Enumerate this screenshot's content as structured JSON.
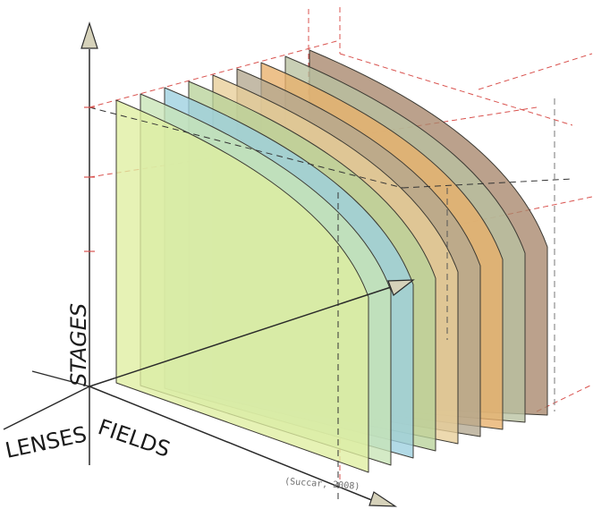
{
  "labels": {
    "stages": "STAGES",
    "lenses": "LENSES",
    "fields": "FIELDS"
  },
  "credit": "(Succar, 2008)",
  "colors": {
    "background": "#ffffff",
    "axis": "#2a2a2a",
    "guide_dash": "#d9534f",
    "arrow_fill": "#d6d2ba"
  },
  "layers": [
    {
      "name": "layer-1",
      "color": "#dfeea0"
    },
    {
      "name": "layer-2",
      "color": "#c8e4b6"
    },
    {
      "name": "layer-3",
      "color": "#9cd0df"
    },
    {
      "name": "layer-4",
      "color": "#b8d29a"
    },
    {
      "name": "layer-5",
      "color": "#e8ce98"
    },
    {
      "name": "layer-6",
      "color": "#b4a890"
    },
    {
      "name": "layer-7",
      "color": "#e8b06a"
    },
    {
      "name": "layer-8",
      "color": "#b8c2a0"
    },
    {
      "name": "layer-9",
      "color": "#a8866c"
    }
  ]
}
